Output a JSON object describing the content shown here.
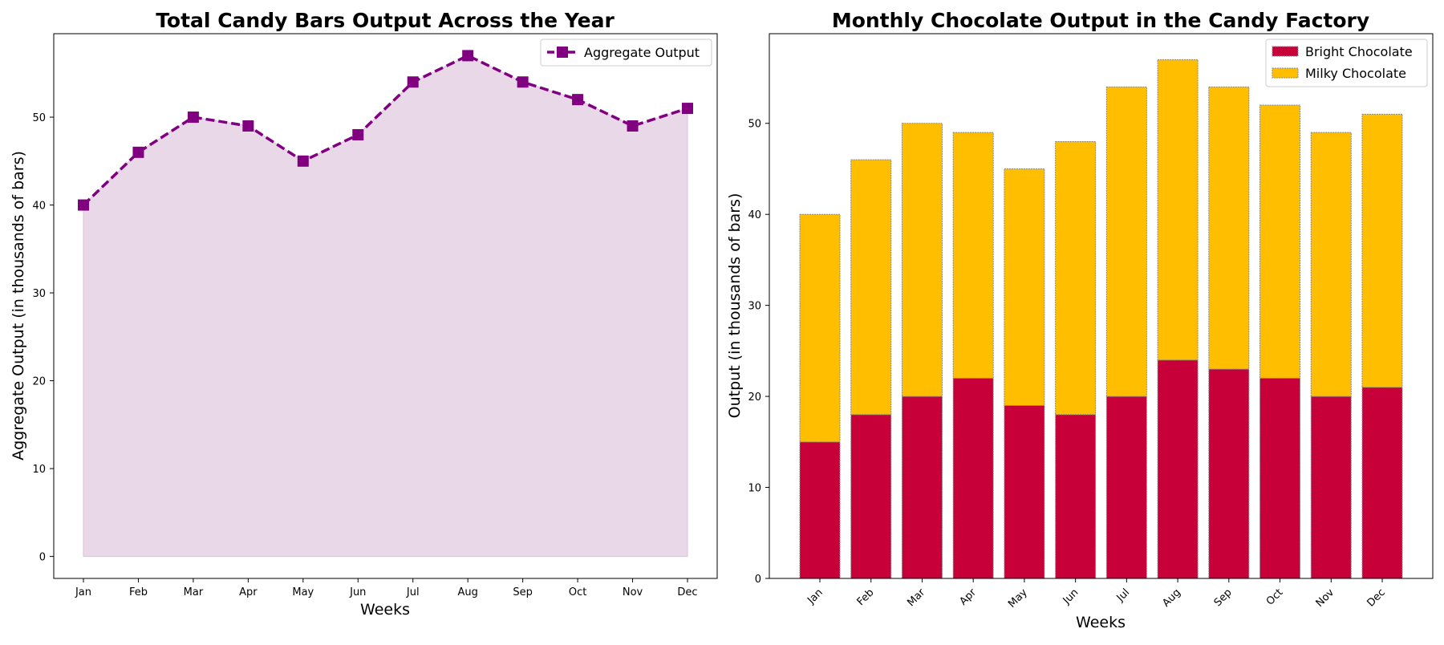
{
  "chart_data": [
    {
      "type": "line",
      "title": "Total Candy Bars Output Across the Year",
      "xlabel": "Weeks",
      "ylabel": "Aggregate Output (in thousands of bars)",
      "categories": [
        "Jan",
        "Feb",
        "Mar",
        "Apr",
        "May",
        "Jun",
        "Jul",
        "Aug",
        "Sep",
        "Oct",
        "Nov",
        "Dec"
      ],
      "ylim": [
        -2.5,
        59.5
      ],
      "yticks": [
        0,
        10,
        20,
        30,
        40,
        50
      ],
      "grid": false,
      "legend": "top-right",
      "series": [
        {
          "name": "Aggregate Output",
          "values": [
            40,
            46,
            50,
            49,
            45,
            48,
            54,
            57,
            54,
            52,
            49,
            51
          ],
          "color": "#800080",
          "fill": "#e8d8e8",
          "line_style": "dashed",
          "marker": "square",
          "filled_area": true
        }
      ]
    },
    {
      "type": "bar",
      "stacked": true,
      "title": "Monthly Chocolate Output in the Candy Factory",
      "xlabel": "Weeks",
      "ylabel": "Output (in thousands of bars)",
      "categories": [
        "Jan",
        "Feb",
        "Mar",
        "Apr",
        "May",
        "Jun",
        "Jul",
        "Aug",
        "Sep",
        "Oct",
        "Nov",
        "Dec"
      ],
      "ylim": [
        0,
        59.85
      ],
      "yticks": [
        0,
        10,
        20,
        30,
        40,
        50
      ],
      "tick_rotation": 45,
      "grid": false,
      "legend": "top-right",
      "series": [
        {
          "name": "Bright Chocolate",
          "values": [
            15,
            18,
            20,
            22,
            19,
            18,
            20,
            24,
            23,
            22,
            20,
            21
          ],
          "color": "#c8003a"
        },
        {
          "name": "Milky Chocolate",
          "values": [
            25,
            28,
            30,
            27,
            26,
            30,
            34,
            33,
            31,
            30,
            29,
            30
          ],
          "color": "#ffbf00"
        }
      ]
    }
  ]
}
